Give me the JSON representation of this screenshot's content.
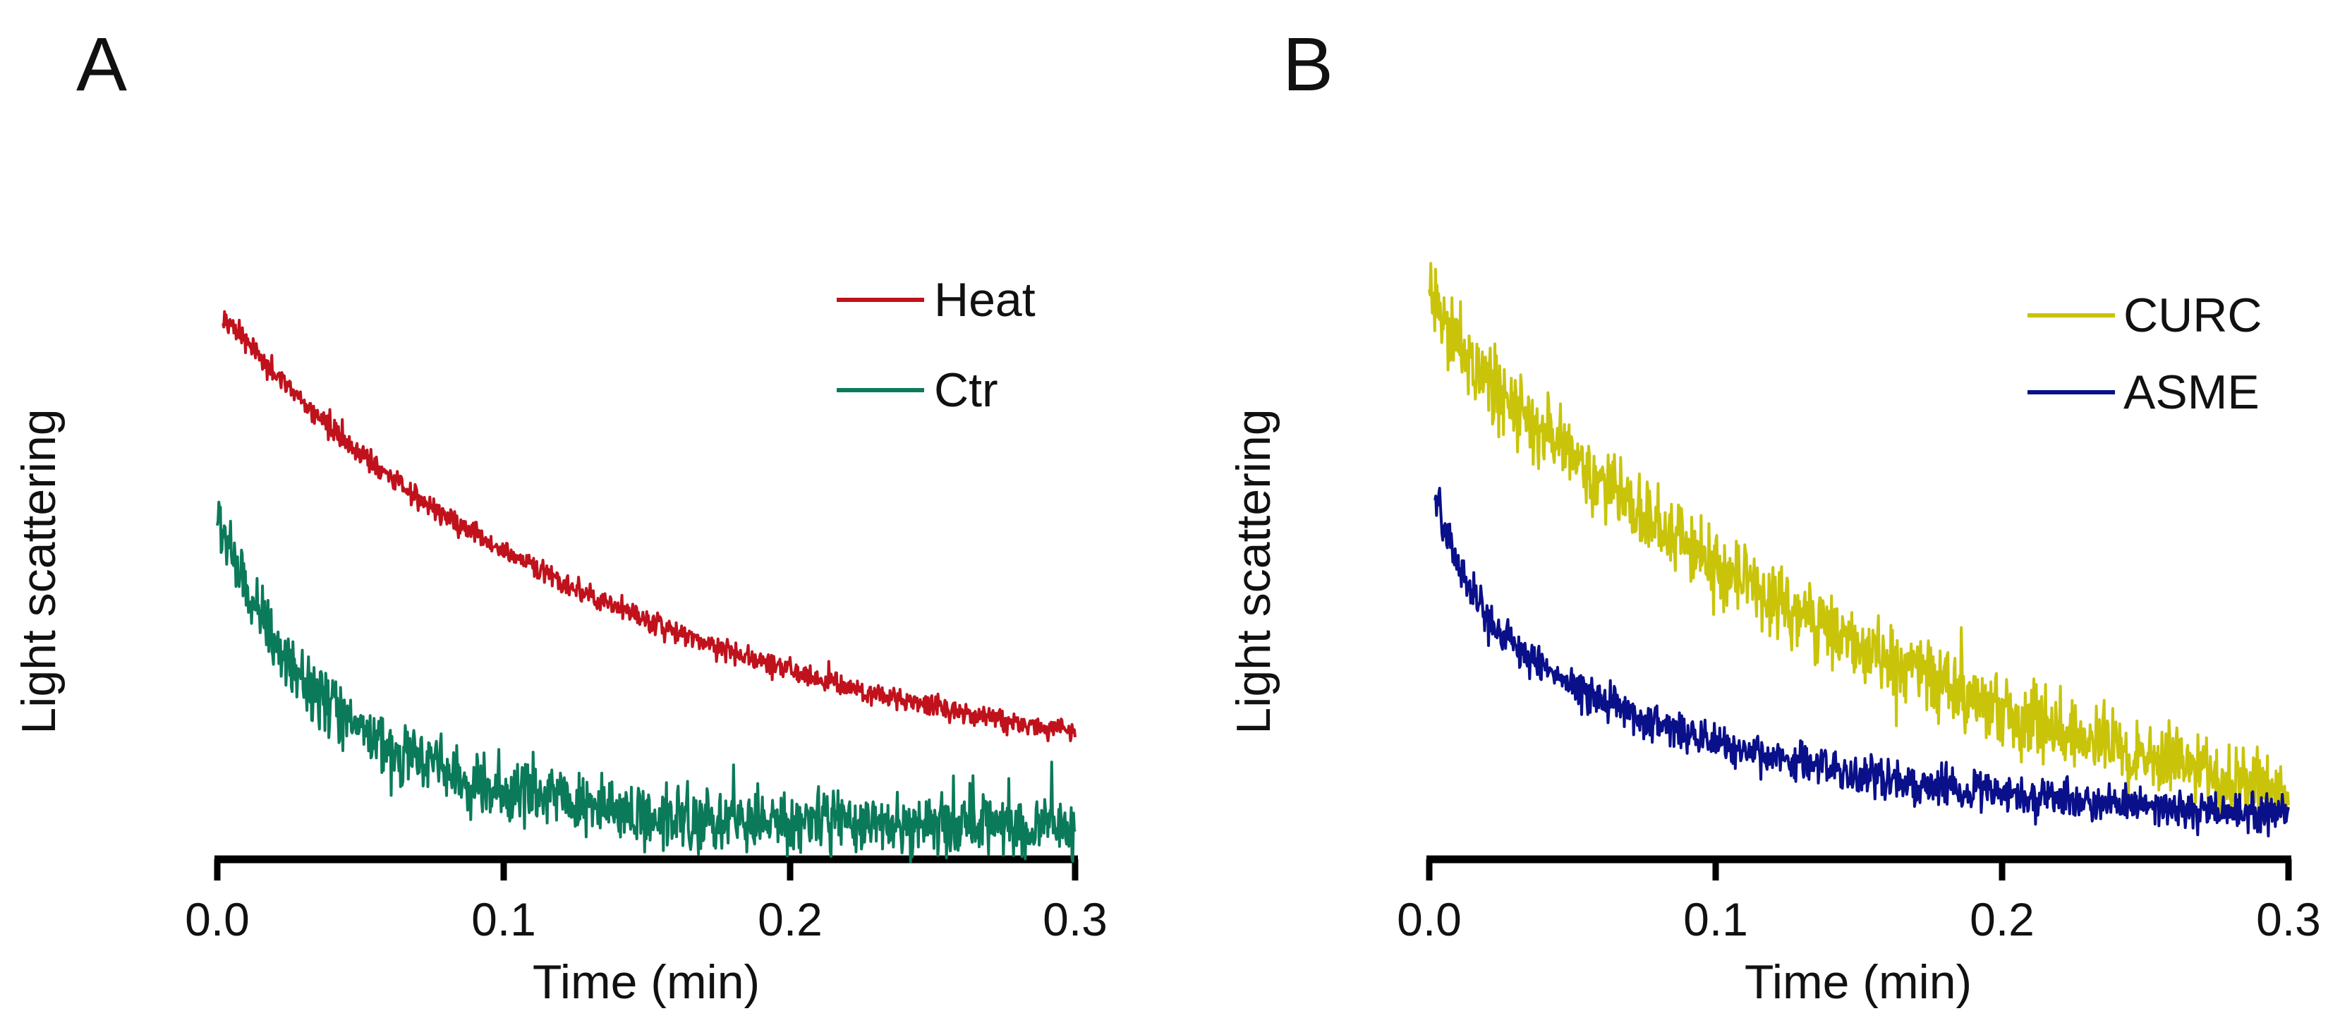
{
  "chart_data": [
    {
      "type": "line",
      "panel_label": "A",
      "title": "",
      "xlabel": "Time (min)",
      "ylabel": "Light scattering",
      "xlim": [
        0.0,
        0.3
      ],
      "ylim": [
        0,
        1
      ],
      "x_ticks": [
        "0.0",
        "0.1",
        "0.2",
        "0.3"
      ],
      "y_ticks_shown": false,
      "grid": false,
      "legend_position": "top-right",
      "series": [
        {
          "name": "Heat",
          "color": "#c0121c",
          "start": 0.87,
          "end": 0.19,
          "tau": 0.16,
          "fast_amp": 0.04,
          "fast_tau": 0.03,
          "noise": 0.018,
          "x_start": 0.002
        },
        {
          "name": "Ctr",
          "color": "#0b7a5a",
          "start": 0.55,
          "end": 0.04,
          "tau": 0.05,
          "fast_amp": 0.08,
          "fast_tau": 0.01,
          "noise": 0.05,
          "x_start": 0.0
        }
      ]
    },
    {
      "type": "line",
      "panel_label": "B",
      "title": "",
      "xlabel": "Time (min)",
      "ylabel": "Light scattering",
      "xlim": [
        0.0,
        0.3
      ],
      "ylim": [
        0,
        1
      ],
      "x_ticks": [
        "0.0",
        "0.1",
        "0.2",
        "0.3"
      ],
      "y_ticks_shown": false,
      "grid": false,
      "legend_position": "top-right",
      "series": [
        {
          "name": "CURC",
          "color": "#c9c40a",
          "start": 0.9,
          "end": 0.09,
          "tau": 0.2,
          "fast_amp": 0.05,
          "fast_tau": 0.01,
          "noise": 0.06,
          "x_start": 0.0
        },
        {
          "name": "ASME",
          "color": "#0a0f8a",
          "start": 0.58,
          "end": 0.06,
          "tau": 0.1,
          "fast_amp": 0.18,
          "fast_tau": 0.012,
          "noise": 0.03,
          "x_start": 0.002
        }
      ]
    }
  ]
}
